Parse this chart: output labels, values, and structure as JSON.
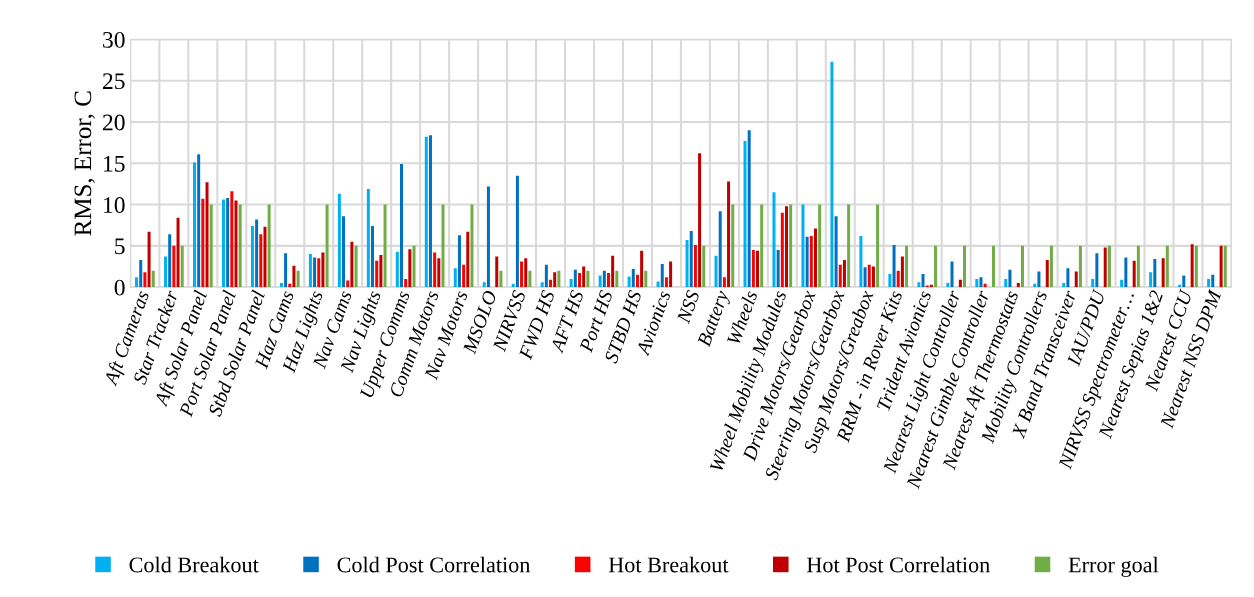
{
  "chart_data": {
    "type": "bar",
    "ylabel": "RMS, Error, C",
    "categories": [
      "Aft Cameras",
      "Star Tracker",
      "Aft Solar Panel",
      "Port Solar Panel",
      "Stbd Solar Panel",
      "Haz Cams",
      "Haz Lights",
      "Nav Cams",
      "Nav Lights",
      "Upper Comms",
      "Comm Motors",
      "Nav Motors",
      "MSOLO",
      "NIRVSS",
      "FWD HS",
      "AFT HS",
      "Port HS",
      "STBD HS",
      "Avionics",
      "NSS",
      "Battery",
      "Wheels",
      "Wheel Mobility Modules",
      "Drive Motors/Gearbox",
      "Steering Motors/Gearbox",
      "Susp Motors/Greabox",
      "RRM - in Rover Kits",
      "Trident Avionics",
      "Nearest Light Controller",
      "Nearest Gimble Controller",
      "Nearest Aft Thermostats",
      "Mobility Controllers",
      "X Band Transceiver",
      "IAU/PDU",
      "NIRVSS Spectrometer…",
      "Nearest Sepias 1&2",
      "Nearest CCU",
      "Nearest NSS DPM"
    ],
    "series": [
      {
        "name": "Cold Breakout",
        "color": "#00b0f0",
        "values": [
          1.2,
          3.7,
          15.1,
          10.6,
          7.4,
          0.5,
          4.0,
          11.3,
          11.9,
          4.3,
          18.2,
          2.3,
          0.6,
          0.4,
          0.6,
          1.0,
          1.4,
          1.3,
          0.7,
          5.7,
          3.8,
          17.7,
          11.5,
          10.0,
          27.3,
          6.2,
          1.6,
          0.6,
          0.5,
          1.0,
          1.0,
          0.4,
          0.5,
          1.0,
          0.9,
          1.8,
          0.3,
          1.0
        ]
      },
      {
        "name": "Cold Post Correlation",
        "color": "#0070c0",
        "values": [
          3.3,
          6.4,
          16.1,
          10.8,
          8.2,
          4.1,
          3.6,
          8.6,
          7.4,
          14.9,
          18.4,
          6.3,
          12.2,
          13.5,
          2.7,
          2.1,
          2.0,
          2.2,
          2.8,
          6.8,
          9.2,
          19.0,
          4.5,
          6.1,
          8.6,
          2.4,
          5.1,
          1.6,
          3.1,
          1.2,
          2.1,
          1.9,
          2.3,
          4.1,
          3.6,
          3.4,
          1.4,
          1.5
        ]
      },
      {
        "name": "Hot Breakout",
        "color": "#ff0000",
        "values": [
          1.8,
          5.0,
          10.7,
          11.6,
          6.4,
          0.4,
          3.5,
          0.8,
          3.2,
          1.0,
          4.2,
          2.7,
          null,
          3.1,
          0.9,
          1.7,
          1.7,
          1.5,
          1.2,
          5.1,
          1.2,
          4.5,
          9.0,
          6.2,
          2.7,
          2.7,
          2.0,
          0.2,
          null,
          0.4,
          null,
          null,
          null,
          null,
          null,
          null,
          null,
          null
        ]
      },
      {
        "name": "Hot Post Correlation",
        "color": "#c00000",
        "values": [
          6.7,
          8.4,
          12.7,
          10.5,
          7.3,
          2.6,
          4.2,
          5.5,
          3.9,
          4.6,
          3.5,
          6.7,
          3.7,
          3.5,
          1.8,
          2.5,
          3.8,
          4.4,
          3.1,
          16.2,
          12.8,
          4.4,
          9.8,
          7.1,
          3.3,
          2.5,
          3.7,
          0.3,
          0.9,
          null,
          0.5,
          3.3,
          1.9,
          4.8,
          3.2,
          3.5,
          5.2,
          5.0
        ]
      },
      {
        "name": "Error goal",
        "color": "#70ad47",
        "values": [
          2,
          5,
          10,
          10,
          10,
          2,
          10,
          5,
          10,
          5,
          10,
          10,
          2,
          2,
          2,
          2,
          2,
          2,
          null,
          5,
          10,
          10,
          10,
          10,
          10,
          10,
          5,
          5,
          5,
          5,
          5,
          5,
          5,
          5,
          5,
          5,
          5,
          5
        ]
      }
    ],
    "ylim": [
      0,
      30
    ],
    "yticks": [
      0,
      5,
      10,
      15,
      20,
      25,
      30
    ],
    "grid": true,
    "legend": "bottom"
  }
}
